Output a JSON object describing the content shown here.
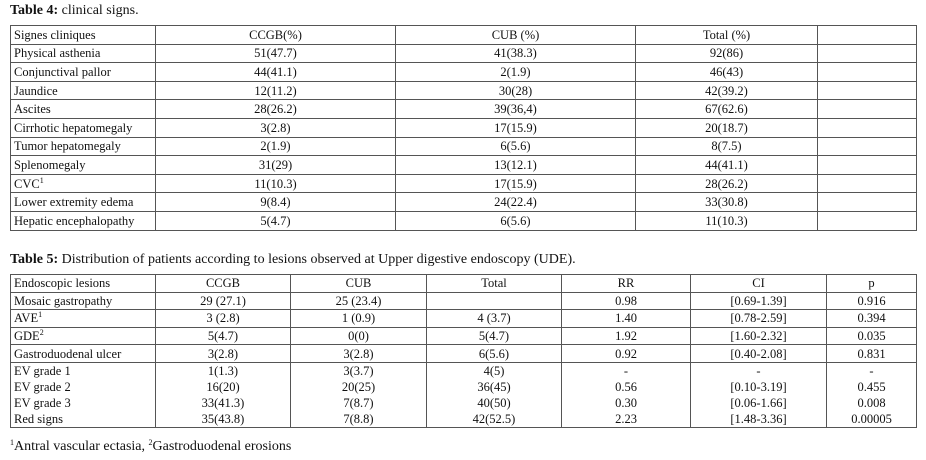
{
  "table4": {
    "caption_bold": "Table 4:",
    "caption_rest": " clinical signs.",
    "header": [
      "Signes cliniques",
      "CCGB(%)",
      "CUB (%)",
      "Total (%)",
      ""
    ],
    "rows": [
      [
        "Physical asthenia",
        "51(47.7)",
        "41(38.3)",
        "92(86)",
        ""
      ],
      [
        "Conjunctival pallor",
        "44(41.1)",
        "2(1.9)",
        "46(43)",
        ""
      ],
      [
        "Jaundice",
        "12(11.2)",
        "30(28)",
        "42(39.2)",
        ""
      ],
      [
        "Ascites",
        "28(26.2)",
        "39(36,4)",
        "67(62.6)",
        ""
      ],
      [
        "Cirrhotic hepatomegaly",
        "3(2.8)",
        "17(15.9)",
        "20(18.7)",
        ""
      ],
      [
        "Tumor hepatomegaly",
        "2(1.9)",
        "6(5.6)",
        "8(7.5)",
        ""
      ],
      [
        "Splenomegaly",
        "31(29)",
        "13(12.1)",
        "44(41.1)",
        ""
      ],
      [
        "CVC",
        "11(10.3)",
        "17(15.9)",
        "28(26.2)",
        ""
      ],
      [
        "Lower extremity edema",
        "9(8.4)",
        "24(22.4)",
        "33(30.8)",
        ""
      ],
      [
        "Hepatic encephalopathy",
        "5(4.7)",
        "6(5.6)",
        "11(10.3)",
        ""
      ]
    ],
    "cvc_sup": "1"
  },
  "table5": {
    "caption_bold": "Table 5:",
    "caption_rest": " Distribution of patients according to lesions observed at Upper digestive endoscopy (UDE).",
    "header": [
      "Endoscopic lesions",
      "CCGB",
      "CUB",
      "Total",
      "RR",
      "CI",
      "p"
    ],
    "rows": [
      [
        "Mosaic gastropathy",
        "29 (27.1)",
        "25 (23.4)",
        "",
        "0.98",
        "[0.69-1.39]",
        "0.916"
      ],
      [
        "AVE",
        "3 (2.8)",
        "1 (0.9)",
        "4 (3.7)",
        "1.40",
        "[0.78-2.59]",
        "0.394"
      ],
      [
        "GDE",
        "5(4.7)",
        "0(0)",
        "5(4.7)",
        "1.92",
        "[1.60-2.32]",
        "0.035"
      ],
      [
        "Gastroduodenal ulcer",
        "3(2.8)",
        "3(2.8)",
        "6(5.6)",
        "0.92",
        "[0.40-2.08]",
        "0.831"
      ]
    ],
    "ave_sup": "1",
    "gde_sup": "2",
    "group": {
      "lesions": [
        "EV grade 1",
        "EV grade 2",
        "EV grade 3",
        "Red signs"
      ],
      "ccgb": [
        "1(1.3)",
        "16(20)",
        "33(41.3)",
        "35(43.8)"
      ],
      "cub": [
        "3(3.7)",
        "20(25)",
        "7(8.7)",
        "7(8.8)"
      ],
      "total": [
        "4(5)",
        "36(45)",
        "40(50)",
        "42(52.5)"
      ],
      "rr": [
        "-",
        "0.56",
        "0.30",
        "2.23"
      ],
      "ci": [
        "-",
        "[0.10-3.19]",
        "[0.06-1.66]",
        "[1.48-3.36]"
      ],
      "p": [
        "-",
        "0.455",
        "0.008",
        "0.00005"
      ]
    }
  },
  "footnote": {
    "sup1": "1",
    "text1": "Antral vascular ectasia, ",
    "sup2": "2",
    "text2": "Gastroduodenal erosions"
  }
}
